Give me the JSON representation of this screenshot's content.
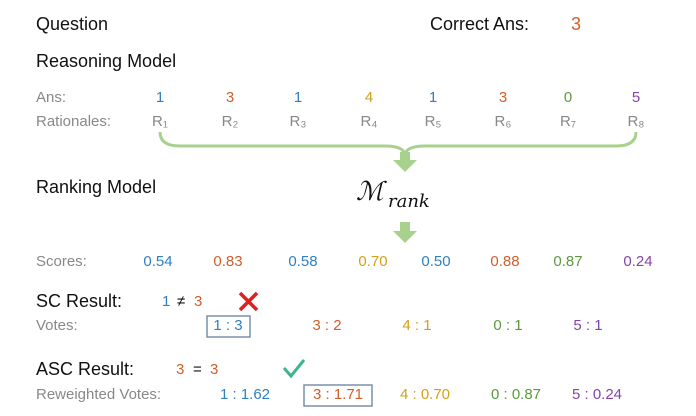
{
  "question": {
    "label": "Question",
    "correct_label": "Correct Ans:",
    "correct_value": "3"
  },
  "reasoning_model": {
    "title": "Reasoning Model",
    "ans_label": "Ans:",
    "answers": [
      "1",
      "3",
      "1",
      "4",
      "1",
      "3",
      "0",
      "5"
    ],
    "rationales_label": "Rationales:",
    "rationales": [
      "R₁",
      "R₂",
      "R₃",
      "R₄",
      "R₅",
      "R₆",
      "R₇",
      "R₈"
    ]
  },
  "ranking_model": {
    "title": "Ranking Model",
    "symbol": "ℳ",
    "subscript": "rank"
  },
  "scores": {
    "label": "Scores:",
    "values": [
      "0.54",
      "0.83",
      "0.58",
      "0.70",
      "0.50",
      "0.88",
      "0.87",
      "0.24"
    ]
  },
  "sc_result": {
    "label": "SC Result:",
    "lhs": "1",
    "op": "≠",
    "rhs": "3",
    "votes_label": "Votes:",
    "votes": [
      "1 : 3",
      "3 : 2",
      "4 : 1",
      "0 : 1",
      "5 : 1"
    ]
  },
  "asc_result": {
    "label": "ASC Result:",
    "lhs": "3",
    "op": "=",
    "rhs": "3",
    "votes_label": "Reweighted Votes:",
    "votes": [
      "1 : 1.62",
      "3 : 1.71",
      "4 : 0.70",
      "0 : 0.87",
      "5 : 0.24"
    ]
  }
}
